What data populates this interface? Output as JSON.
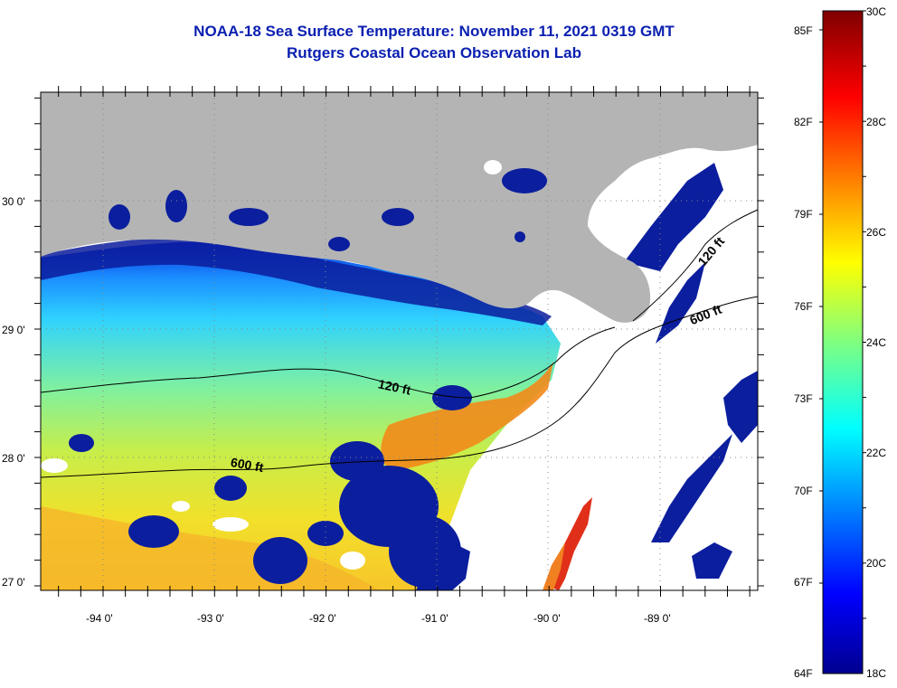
{
  "title": "NOAA-18 Sea Surface Temperature:  November 11, 2021 0319 GMT",
  "subtitle": "Rutgers Coastal Ocean Observation Lab",
  "lat_labels": [
    "30 0'",
    "29 0'",
    "28 0'",
    "27 0'"
  ],
  "lon_labels": [
    "-94 0'",
    "-93 0'",
    "-92 0'",
    "-91 0'",
    "-90 0'",
    "-89 0'"
  ],
  "contours": [
    {
      "label": "120 ft",
      "name": "shelf-120ft-west"
    },
    {
      "label": "600 ft",
      "name": "shelf-600ft-west"
    },
    {
      "label": "120 ft",
      "name": "shelf-120ft-east"
    },
    {
      "label": "600 ft",
      "name": "shelf-600ft-east"
    }
  ],
  "colorbar": {
    "fahrenheit": [
      "85F",
      "82F",
      "79F",
      "76F",
      "73F",
      "70F",
      "67F",
      "64F"
    ],
    "celsius": [
      "30C",
      "28C",
      "26C",
      "24C",
      "22C",
      "20C",
      "18C"
    ],
    "min_c": 18,
    "max_c": 30
  },
  "colors": {
    "title": "#0a1fb0",
    "land": "#b4b4b4",
    "no_data": "#ffffff"
  }
}
